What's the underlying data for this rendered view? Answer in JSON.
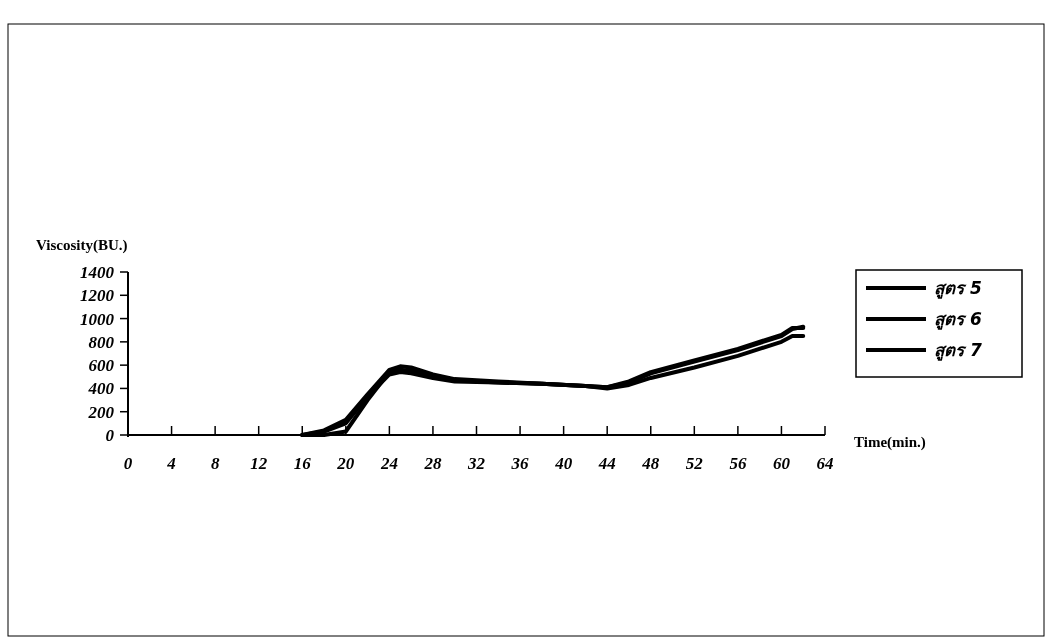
{
  "chart_data": {
    "type": "line",
    "xlabel": "Time(min.)",
    "ylabel": "Viscosity(BU.)",
    "xlim": [
      0,
      64
    ],
    "xticks": [
      0,
      4,
      8,
      12,
      16,
      20,
      24,
      28,
      32,
      36,
      40,
      44,
      48,
      52,
      56,
      60,
      64
    ],
    "ylim": [
      0,
      1400
    ],
    "yticks": [
      0,
      200,
      400,
      600,
      800,
      1000,
      1200,
      1400
    ],
    "grid": false,
    "legend": "right",
    "marker": "none",
    "line_style": "solid",
    "series": [
      {
        "name": "สูตร 5",
        "color": "#000000",
        "x": [
          16,
          18,
          20,
          22,
          24,
          25,
          26,
          28,
          30,
          34,
          38,
          42,
          44,
          46,
          48,
          52,
          56,
          60,
          61,
          62
        ],
        "values": [
          0,
          40,
          130,
          350,
          560,
          590,
          580,
          520,
          480,
          460,
          440,
          420,
          410,
          460,
          540,
          640,
          740,
          860,
          920,
          920
        ]
      },
      {
        "name": "สูตร 6",
        "color": "#000000",
        "x": [
          16,
          18,
          20,
          22,
          24,
          25,
          26,
          28,
          30,
          34,
          38,
          42,
          44,
          46,
          48,
          52,
          56,
          60,
          61,
          62
        ],
        "values": [
          0,
          0,
          30,
          300,
          540,
          560,
          550,
          500,
          470,
          450,
          440,
          420,
          410,
          450,
          530,
          630,
          730,
          850,
          910,
          930
        ]
      },
      {
        "name": "สูตร 7",
        "color": "#000000",
        "x": [
          16,
          18,
          20,
          22,
          24,
          25,
          26,
          28,
          30,
          34,
          38,
          42,
          44,
          46,
          48,
          52,
          56,
          60,
          61,
          62
        ],
        "values": [
          0,
          30,
          100,
          330,
          520,
          540,
          530,
          490,
          460,
          450,
          440,
          420,
          400,
          430,
          490,
          580,
          680,
          800,
          850,
          850
        ]
      }
    ]
  }
}
